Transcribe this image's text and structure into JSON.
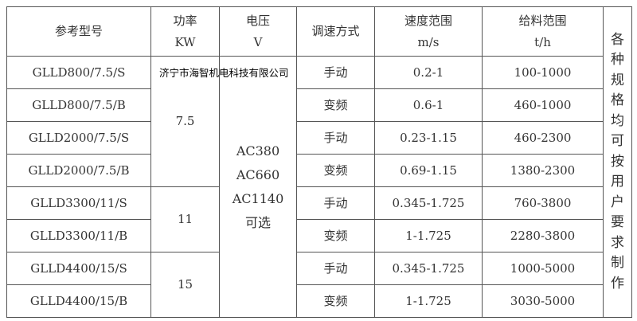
{
  "headers": {
    "model": "参考型号",
    "power": [
      "功率",
      "KW"
    ],
    "voltage": [
      "电压",
      "V"
    ],
    "speed_mode": "调速方式",
    "speed_range": [
      "速度范围",
      "m/s"
    ],
    "feed_range": [
      "给料范围",
      "t/h"
    ]
  },
  "note_chars": [
    "各",
    "种",
    "规",
    "格",
    "均",
    "可",
    "按",
    "用",
    "户",
    "要",
    "求",
    "制",
    "作"
  ],
  "power_groups": [
    "7.5",
    "11",
    "15"
  ],
  "voltage": [
    "AC380",
    "AC660",
    "AC1140",
    "可选"
  ],
  "rows": [
    {
      "model": "GLLD800/7.5/S",
      "mode": "手动",
      "speed": "0.2-1",
      "feed": "100-1000"
    },
    {
      "model": "GLLD800/7.5/B",
      "mode": "变频",
      "speed": "0.6-1",
      "feed": "460-1000"
    },
    {
      "model": "GLLD2000/7.5/S",
      "mode": "手动",
      "speed": "0.23-1.15",
      "feed": "460-2300"
    },
    {
      "model": "GLLD2000/7.5/B",
      "mode": "变频",
      "speed": "0.69-1.15",
      "feed": "1380-2300"
    },
    {
      "model": "GLLD3300/11/S",
      "mode": "手动",
      "speed": "0.345-1.725",
      "feed": "760-3800"
    },
    {
      "model": "GLLD3300/11/B",
      "mode": "变频",
      "speed": "1-1.725",
      "feed": "2280-3800"
    },
    {
      "model": "GLLD4400/15/S",
      "mode": "手动",
      "speed": "0.345-1.725",
      "feed": "1000-5000"
    },
    {
      "model": "GLLD4400/15/B",
      "mode": "变频",
      "speed": "1-1.725",
      "feed": "3030-5000"
    }
  ],
  "watermark": "济宁市海智机电科技有限公司"
}
